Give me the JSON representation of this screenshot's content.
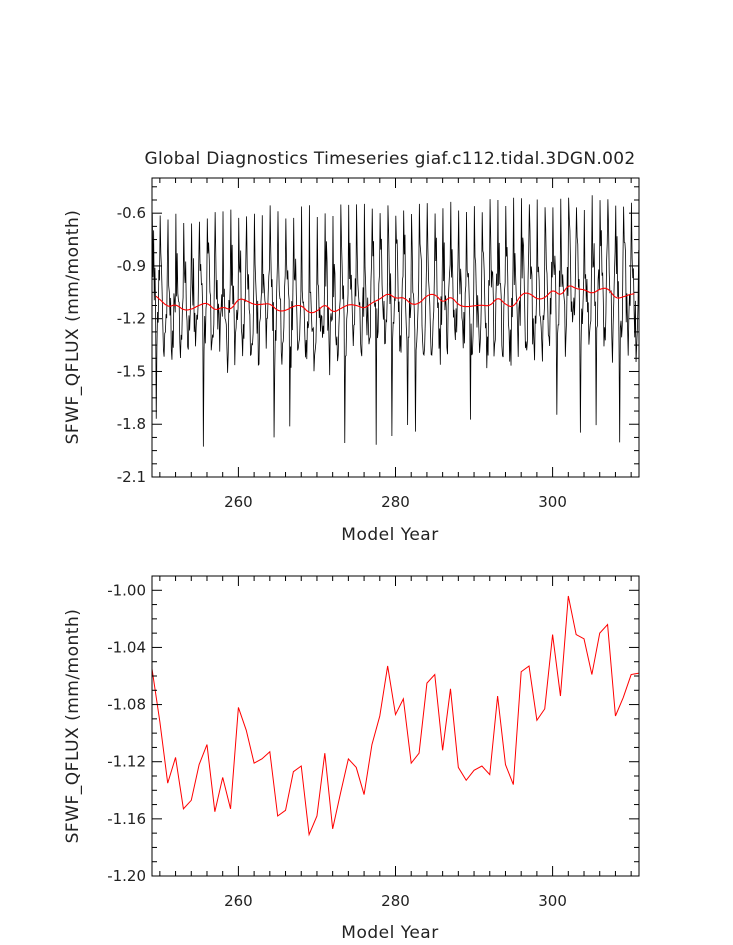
{
  "figure": {
    "title": "Global Diagnostics Timeseries giaf.c112.tidal.3DGN.002"
  },
  "chart_data": [
    {
      "type": "line",
      "title": "Global Diagnostics Timeseries giaf.c112.tidal.3DGN.002",
      "xlabel": "Model Year",
      "ylabel": "SFWF_QFLUX (mm/month)",
      "xlim": [
        249,
        311
      ],
      "ylim": [
        -2.1,
        -0.4
      ],
      "xticks": [
        260,
        280,
        300
      ],
      "xtick_labels": [
        "260",
        "280",
        "300"
      ],
      "yticks": [
        -0.6,
        -0.9,
        -1.2,
        -1.5,
        -1.8,
        -2.1
      ],
      "ytick_labels": [
        "-0.6",
        "-0.9",
        "-1.2",
        "-1.5",
        "-1.8",
        "-2.1"
      ],
      "colors": {
        "monthly": "#000000",
        "annual": "#ff0000"
      },
      "series": [
        {
          "kind": "monthly",
          "x_start": 249.04,
          "x_step": 0.0833333,
          "values": []
        },
        {
          "kind": "annual_mean",
          "x_start": 249.5,
          "x_step": 0.0833333,
          "values": []
        }
      ]
    },
    {
      "type": "line",
      "title": "",
      "xlabel": "Model Year",
      "ylabel": "SFWF_QFLUX (mm/month)",
      "xlim": [
        249,
        311
      ],
      "ylim": [
        -1.2,
        -0.99
      ],
      "xticks": [
        260,
        280,
        300
      ],
      "xtick_labels": [
        "260",
        "280",
        "300"
      ],
      "yticks": [
        -1.0,
        -1.04,
        -1.08,
        -1.12,
        -1.16,
        -1.2
      ],
      "ytick_labels": [
        "-1.00",
        "-1.04",
        "-1.08",
        "-1.12",
        "-1.16",
        "-1.20"
      ],
      "colors": {
        "line": "#ff0000"
      },
      "series": [
        {
          "x": [
            249,
            250,
            251,
            252,
            253,
            254,
            255,
            256,
            257,
            258,
            259,
            260,
            261,
            262,
            263,
            264,
            265,
            266,
            267,
            268,
            269,
            270,
            271,
            272,
            273,
            274,
            275,
            276,
            277,
            278,
            279,
            280,
            281,
            282,
            283,
            284,
            285,
            286,
            287,
            288,
            289,
            290,
            291,
            292,
            293,
            294,
            295,
            296,
            297,
            298,
            299,
            300,
            301,
            302,
            303,
            304,
            305,
            306,
            307,
            308,
            309,
            310,
            311
          ],
          "values": [
            -1.055,
            -1.092,
            -1.135,
            -1.117,
            -1.153,
            -1.147,
            -1.122,
            -1.108,
            -1.155,
            -1.131,
            -1.153,
            -1.082,
            -1.098,
            -1.121,
            -1.118,
            -1.113,
            -1.158,
            -1.154,
            -1.127,
            -1.123,
            -1.171,
            -1.158,
            -1.114,
            -1.167,
            -1.142,
            -1.118,
            -1.124,
            -1.143,
            -1.108,
            -1.088,
            -1.053,
            -1.087,
            -1.076,
            -1.121,
            -1.114,
            -1.065,
            -1.059,
            -1.112,
            -1.069,
            -1.124,
            -1.133,
            -1.126,
            -1.123,
            -1.129,
            -1.074,
            -1.122,
            -1.136,
            -1.057,
            -1.053,
            -1.091,
            -1.083,
            -1.031,
            -1.074,
            -1.004,
            -1.031,
            -1.034,
            -1.059,
            -1.03,
            -1.024,
            -1.088,
            -1.075,
            -1.059,
            -1.058
          ]
        }
      ]
    }
  ]
}
